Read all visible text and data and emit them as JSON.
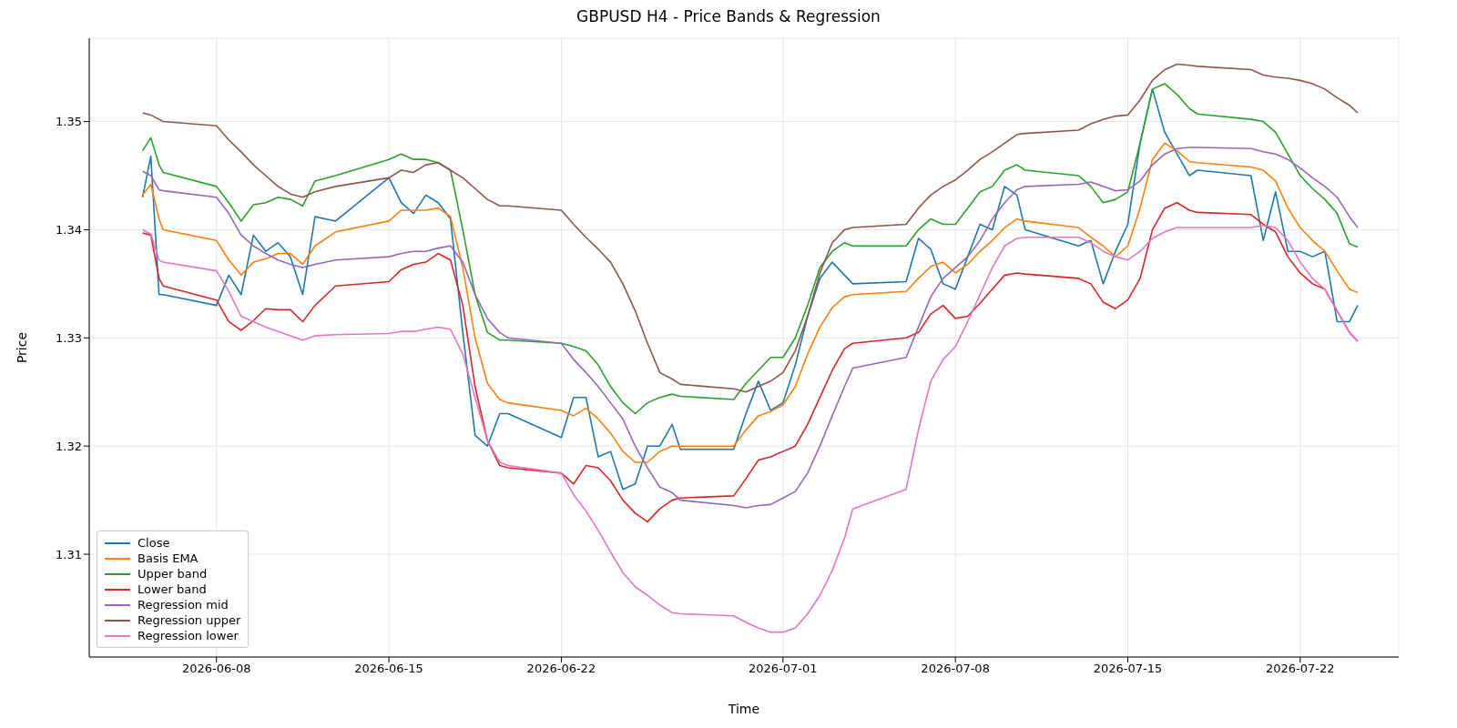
{
  "chart_data": {
    "type": "line",
    "title": "GBPUSD H4 - Price Bands & Regression",
    "xlabel": "Time",
    "ylabel": "Price",
    "x": [
      "2026-06-05T00:00",
      "2026-06-05T08:00",
      "2026-06-05T16:00",
      "2026-06-05T20:00",
      "2026-06-08T00:00",
      "2026-06-08T12:00",
      "2026-06-09T00:00",
      "2026-06-09T12:00",
      "2026-06-10T00:00",
      "2026-06-10T12:00",
      "2026-06-11T00:00",
      "2026-06-11T12:00",
      "2026-06-12T00:00",
      "2026-06-12T20:00",
      "2026-06-15T00:00",
      "2026-06-15T12:00",
      "2026-06-16T00:00",
      "2026-06-16T12:00",
      "2026-06-17T00:00",
      "2026-06-17T12:00",
      "2026-06-18T00:00",
      "2026-06-18T12:00",
      "2026-06-19T00:00",
      "2026-06-19T12:00",
      "2026-06-19T20:00",
      "2026-06-22T00:00",
      "2026-06-22T12:00",
      "2026-06-23T00:00",
      "2026-06-23T12:00",
      "2026-06-24T00:00",
      "2026-06-24T12:00",
      "2026-06-25T00:00",
      "2026-06-25T12:00",
      "2026-06-26T00:00",
      "2026-06-26T12:00",
      "2026-06-26T20:00",
      "2026-06-29T00:00",
      "2026-06-29T12:00",
      "2026-06-30T00:00",
      "2026-06-30T12:00",
      "2026-07-01T00:00",
      "2026-07-01T12:00",
      "2026-07-02T00:00",
      "2026-07-02T12:00",
      "2026-07-03T00:00",
      "2026-07-03T12:00",
      "2026-07-03T20:00",
      "2026-07-06T00:00",
      "2026-07-06T12:00",
      "2026-07-07T00:00",
      "2026-07-07T12:00",
      "2026-07-08T00:00",
      "2026-07-08T12:00",
      "2026-07-09T00:00",
      "2026-07-09T12:00",
      "2026-07-10T00:00",
      "2026-07-10T12:00",
      "2026-07-10T20:00",
      "2026-07-13T00:00",
      "2026-07-13T12:00",
      "2026-07-14T00:00",
      "2026-07-14T12:00",
      "2026-07-15T00:00",
      "2026-07-15T12:00",
      "2026-07-16T00:00",
      "2026-07-16T12:00",
      "2026-07-17T00:00",
      "2026-07-17T12:00",
      "2026-07-17T20:00",
      "2026-07-20T00:00",
      "2026-07-20T12:00",
      "2026-07-21T00:00",
      "2026-07-21T12:00",
      "2026-07-22T00:00",
      "2026-07-22T12:00",
      "2026-07-23T00:00",
      "2026-07-23T12:00",
      "2026-07-24T00:00",
      "2026-07-24T08:00"
    ],
    "series": [
      {
        "name": "Close",
        "color": "#1f77b4",
        "values": [
          1.343,
          1.3468,
          1.334,
          1.334,
          1.333,
          1.3358,
          1.334,
          1.3395,
          1.338,
          1.3388,
          1.3375,
          1.334,
          1.3412,
          1.3408,
          1.3448,
          1.3425,
          1.3415,
          1.3432,
          1.3425,
          1.341,
          1.3305,
          1.321,
          1.32,
          1.323,
          1.323,
          1.3208,
          1.3245,
          1.3245,
          1.319,
          1.3195,
          1.316,
          1.3165,
          1.32,
          1.32,
          1.322,
          1.3197,
          1.3197,
          1.323,
          1.326,
          1.3233,
          1.324,
          1.3275,
          1.332,
          1.3355,
          1.337,
          1.3358,
          1.335,
          1.3352,
          1.3392,
          1.3382,
          1.335,
          1.3345,
          1.3375,
          1.3405,
          1.34,
          1.344,
          1.3432,
          1.34,
          1.3385,
          1.339,
          1.335,
          1.338,
          1.3405,
          1.348,
          1.353,
          1.349,
          1.347,
          1.345,
          1.3455,
          1.345,
          1.339,
          1.3435,
          1.338,
          1.338,
          1.3375,
          1.338,
          1.3315,
          1.3315,
          1.333
        ]
      },
      {
        "name": "Basis EMA",
        "color": "#ff7f0e",
        "values": [
          1.3432,
          1.3442,
          1.341,
          1.34,
          1.339,
          1.3372,
          1.3358,
          1.337,
          1.3373,
          1.3378,
          1.3378,
          1.3368,
          1.3385,
          1.3398,
          1.3408,
          1.3418,
          1.3418,
          1.3418,
          1.342,
          1.3412,
          1.3365,
          1.33,
          1.3258,
          1.3243,
          1.324,
          1.3233,
          1.3228,
          1.3235,
          1.3225,
          1.3212,
          1.3195,
          1.3185,
          1.3185,
          1.3195,
          1.32,
          1.32,
          1.32,
          1.3215,
          1.3228,
          1.3232,
          1.3238,
          1.3255,
          1.3285,
          1.331,
          1.3328,
          1.3338,
          1.334,
          1.3343,
          1.3355,
          1.3366,
          1.337,
          1.336,
          1.3368,
          1.338,
          1.339,
          1.3402,
          1.341,
          1.3408,
          1.3402,
          1.3393,
          1.3385,
          1.3375,
          1.3385,
          1.342,
          1.3465,
          1.348,
          1.3473,
          1.3463,
          1.3462,
          1.3458,
          1.3455,
          1.3445,
          1.342,
          1.3402,
          1.339,
          1.338,
          1.3362,
          1.3345,
          1.3342
        ]
      },
      {
        "name": "Upper band",
        "color": "#2ca02c",
        "values": [
          1.3473,
          1.3485,
          1.346,
          1.3453,
          1.344,
          1.3425,
          1.3408,
          1.3423,
          1.3425,
          1.343,
          1.3428,
          1.3422,
          1.3445,
          1.345,
          1.3465,
          1.347,
          1.3465,
          1.3465,
          1.3462,
          1.3455,
          1.34,
          1.334,
          1.3305,
          1.3298,
          1.3298,
          1.3295,
          1.3292,
          1.3288,
          1.3275,
          1.3255,
          1.324,
          1.323,
          1.324,
          1.3245,
          1.3248,
          1.3246,
          1.3243,
          1.3258,
          1.327,
          1.3282,
          1.3282,
          1.33,
          1.333,
          1.3365,
          1.338,
          1.3388,
          1.3385,
          1.3385,
          1.34,
          1.341,
          1.3405,
          1.3405,
          1.342,
          1.3435,
          1.344,
          1.3455,
          1.346,
          1.3455,
          1.345,
          1.344,
          1.3425,
          1.3428,
          1.3435,
          1.348,
          1.353,
          1.3535,
          1.3525,
          1.3512,
          1.3507,
          1.3502,
          1.35,
          1.349,
          1.347,
          1.345,
          1.3438,
          1.3428,
          1.3415,
          1.3387,
          1.3384
        ]
      },
      {
        "name": "Lower band",
        "color": "#d62728",
        "values": [
          1.3397,
          1.3395,
          1.3355,
          1.3348,
          1.3335,
          1.3315,
          1.3307,
          1.3316,
          1.3327,
          1.3326,
          1.3326,
          1.3315,
          1.333,
          1.3348,
          1.3352,
          1.3363,
          1.3368,
          1.337,
          1.3378,
          1.3372,
          1.333,
          1.3255,
          1.3205,
          1.3182,
          1.318,
          1.3175,
          1.3165,
          1.3182,
          1.318,
          1.3168,
          1.315,
          1.3138,
          1.313,
          1.3142,
          1.315,
          1.3152,
          1.3154,
          1.317,
          1.3187,
          1.319,
          1.3195,
          1.32,
          1.322,
          1.3245,
          1.327,
          1.329,
          1.3295,
          1.33,
          1.3305,
          1.3322,
          1.333,
          1.3318,
          1.332,
          1.3332,
          1.3345,
          1.3358,
          1.336,
          1.3359,
          1.3355,
          1.335,
          1.3333,
          1.3327,
          1.3335,
          1.3355,
          1.34,
          1.342,
          1.3425,
          1.3418,
          1.3416,
          1.3414,
          1.3405,
          1.3398,
          1.3375,
          1.336,
          1.335,
          1.3345,
          1.3325,
          1.3305,
          1.3297
        ]
      },
      {
        "name": "Regression mid",
        "color": "#9467bd",
        "values": [
          1.3454,
          1.345,
          1.3437,
          1.3436,
          1.343,
          1.3415,
          1.3395,
          1.3385,
          1.3378,
          1.3372,
          1.3368,
          1.3365,
          1.3368,
          1.3372,
          1.3375,
          1.3378,
          1.338,
          1.338,
          1.3383,
          1.3385,
          1.337,
          1.334,
          1.3318,
          1.3305,
          1.33,
          1.3295,
          1.328,
          1.3268,
          1.3255,
          1.324,
          1.3225,
          1.32,
          1.318,
          1.3162,
          1.3157,
          1.315,
          1.3145,
          1.3143,
          1.3145,
          1.3146,
          1.3152,
          1.3158,
          1.3175,
          1.32,
          1.3228,
          1.3255,
          1.3272,
          1.3282,
          1.331,
          1.3338,
          1.3355,
          1.3365,
          1.3375,
          1.339,
          1.341,
          1.3425,
          1.3437,
          1.344,
          1.3442,
          1.3444,
          1.344,
          1.3436,
          1.3437,
          1.3445,
          1.346,
          1.347,
          1.3475,
          1.3476,
          1.3476,
          1.3475,
          1.3472,
          1.347,
          1.3465,
          1.3457,
          1.3448,
          1.344,
          1.343,
          1.3412,
          1.3402
        ]
      },
      {
        "name": "Regression upper",
        "color": "#8c564b",
        "values": [
          1.3508,
          1.3506,
          1.3502,
          1.35,
          1.3496,
          1.3483,
          1.3472,
          1.346,
          1.345,
          1.344,
          1.3433,
          1.343,
          1.3435,
          1.344,
          1.3448,
          1.3455,
          1.3453,
          1.346,
          1.3462,
          1.3455,
          1.3448,
          1.3438,
          1.3428,
          1.3422,
          1.3422,
          1.3418,
          1.3405,
          1.3393,
          1.3382,
          1.337,
          1.335,
          1.3325,
          1.3295,
          1.3268,
          1.3262,
          1.3257,
          1.3253,
          1.325,
          1.3255,
          1.326,
          1.3268,
          1.3288,
          1.332,
          1.336,
          1.3388,
          1.34,
          1.3402,
          1.3405,
          1.342,
          1.3432,
          1.344,
          1.3446,
          1.3455,
          1.3465,
          1.3472,
          1.348,
          1.3488,
          1.3489,
          1.3492,
          1.3498,
          1.3502,
          1.3505,
          1.3506,
          1.352,
          1.3538,
          1.3548,
          1.3553,
          1.3552,
          1.3551,
          1.3548,
          1.3543,
          1.3541,
          1.354,
          1.3538,
          1.3535,
          1.353,
          1.3522,
          1.3515,
          1.3508
        ]
      },
      {
        "name": "Regression lower",
        "color": "#e377c2",
        "values": [
          1.34,
          1.3396,
          1.3372,
          1.337,
          1.3362,
          1.3343,
          1.332,
          1.3315,
          1.331,
          1.3306,
          1.3302,
          1.3298,
          1.3302,
          1.3303,
          1.3304,
          1.3306,
          1.3306,
          1.3308,
          1.331,
          1.3308,
          1.3285,
          1.3245,
          1.3205,
          1.3185,
          1.3182,
          1.3175,
          1.3155,
          1.314,
          1.3122,
          1.3102,
          1.3083,
          1.307,
          1.3062,
          1.3053,
          1.3046,
          1.3045,
          1.3043,
          1.3037,
          1.3032,
          1.3028,
          1.3028,
          1.3032,
          1.3045,
          1.3062,
          1.3085,
          1.3115,
          1.3142,
          1.316,
          1.3215,
          1.326,
          1.328,
          1.3292,
          1.3315,
          1.334,
          1.3365,
          1.3385,
          1.3392,
          1.3393,
          1.3393,
          1.3388,
          1.338,
          1.3375,
          1.3372,
          1.338,
          1.3392,
          1.3398,
          1.3402,
          1.3402,
          1.3402,
          1.3402,
          1.3404,
          1.3402,
          1.339,
          1.337,
          1.3355,
          1.3345,
          1.3325,
          1.3305,
          1.3297
        ]
      }
    ],
    "xlim": [
      "2026-06-02T20:00",
      "2026-07-26T00:00"
    ],
    "xticks": [
      "2026-06-08",
      "2026-06-15",
      "2026-06-22",
      "2026-07-01",
      "2026-07-08",
      "2026-07-15",
      "2026-07-22"
    ],
    "ylim": [
      1.3005,
      1.3577
    ],
    "yticks": [
      1.31,
      1.32,
      1.33,
      1.34,
      1.35
    ],
    "grid": true,
    "legend": "bottom left",
    "marker": "none",
    "line_style": "solid"
  }
}
